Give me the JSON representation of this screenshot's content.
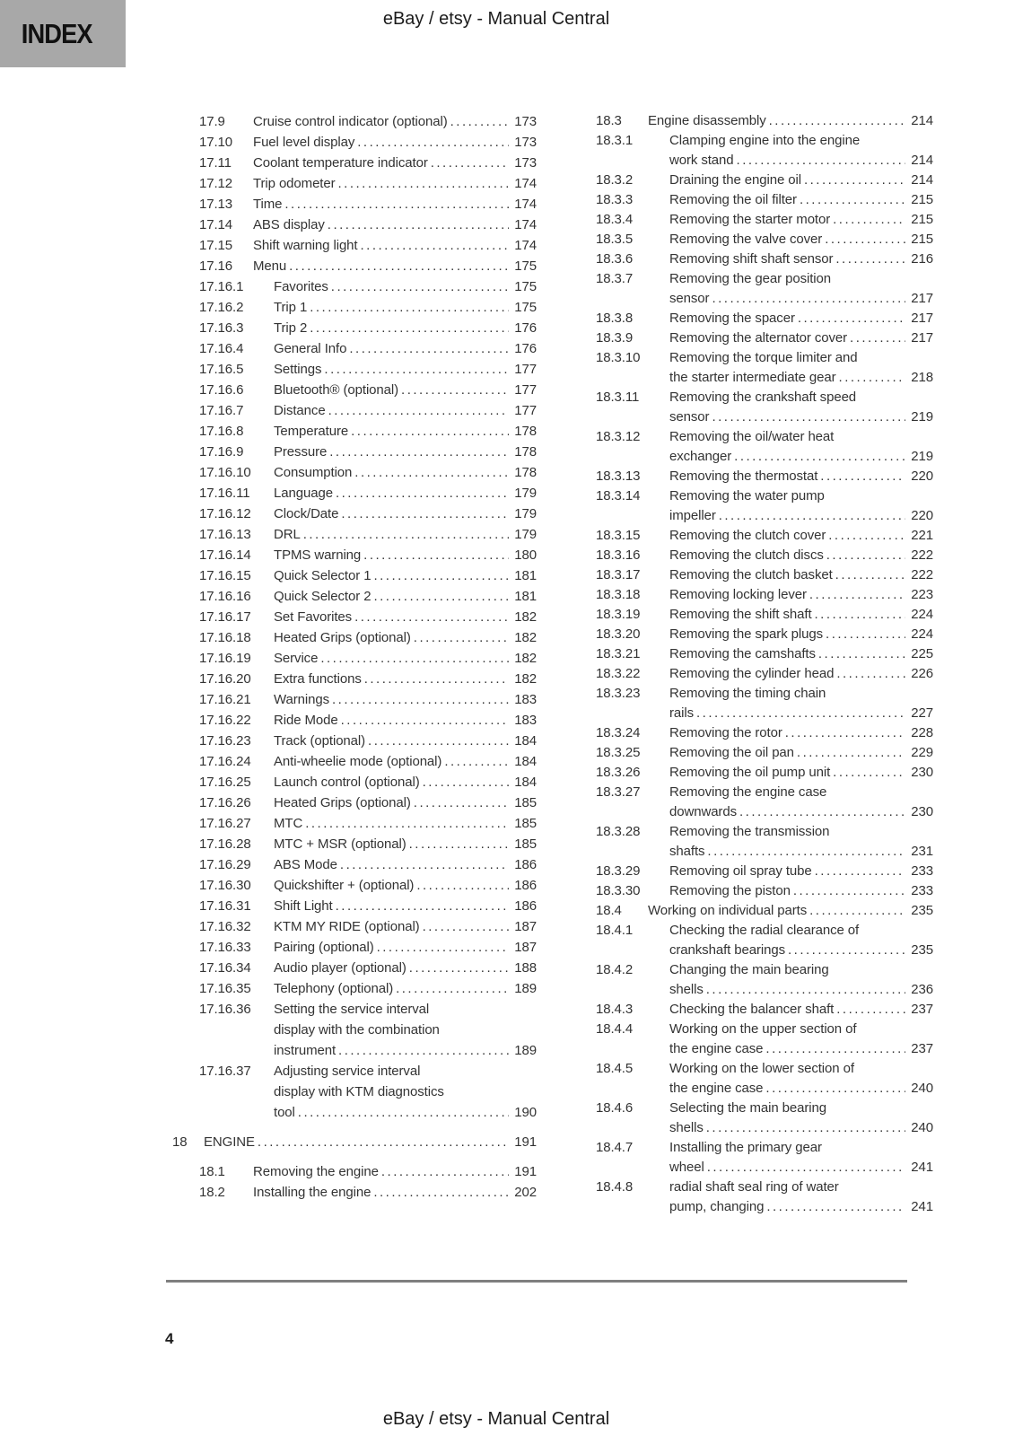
{
  "header": {
    "index_label": "INDEX",
    "title": "eBay / etsy - Manual Central"
  },
  "footer": {
    "page_number": "4",
    "title": "eBay / etsy - Manual Central"
  },
  "colors": {
    "index_tab_bg": "#a8a8a8",
    "body_text": "#333333",
    "footer_rule": "#7f7f7f"
  },
  "toc": {
    "left_column": [
      {
        "num": "17.9",
        "level": 2,
        "lines": [
          "Cruise control indicator (optional)"
        ],
        "page": "173"
      },
      {
        "num": "17.10",
        "level": 2,
        "lines": [
          "Fuel level display"
        ],
        "page": "173"
      },
      {
        "num": "17.11",
        "level": 2,
        "lines": [
          "Coolant temperature indicator"
        ],
        "page": "173"
      },
      {
        "num": "17.12",
        "level": 2,
        "lines": [
          "Trip odometer"
        ],
        "page": "174"
      },
      {
        "num": "17.13",
        "level": 2,
        "lines": [
          "Time"
        ],
        "page": "174"
      },
      {
        "num": "17.14",
        "level": 2,
        "lines": [
          "ABS display"
        ],
        "page": "174"
      },
      {
        "num": "17.15",
        "level": 2,
        "lines": [
          "Shift warning light"
        ],
        "page": "174"
      },
      {
        "num": "17.16",
        "level": 2,
        "lines": [
          "Menu"
        ],
        "page": "175"
      },
      {
        "num": "17.16.1",
        "level": 3,
        "lines": [
          "Favorites"
        ],
        "page": "175"
      },
      {
        "num": "17.16.2",
        "level": 3,
        "lines": [
          "Trip 1"
        ],
        "page": "175"
      },
      {
        "num": "17.16.3",
        "level": 3,
        "lines": [
          "Trip 2"
        ],
        "page": "176"
      },
      {
        "num": "17.16.4",
        "level": 3,
        "lines": [
          "General Info"
        ],
        "page": "176"
      },
      {
        "num": "17.16.5",
        "level": 3,
        "lines": [
          "Settings"
        ],
        "page": "177"
      },
      {
        "num": "17.16.6",
        "level": 3,
        "lines": [
          "Bluetooth® (optional)"
        ],
        "page": "177"
      },
      {
        "num": "17.16.7",
        "level": 3,
        "lines": [
          "Distance"
        ],
        "page": "177"
      },
      {
        "num": "17.16.8",
        "level": 3,
        "lines": [
          "Temperature"
        ],
        "page": "178"
      },
      {
        "num": "17.16.9",
        "level": 3,
        "lines": [
          "Pressure"
        ],
        "page": "178"
      },
      {
        "num": "17.16.10",
        "level": 3,
        "lines": [
          "Consumption"
        ],
        "page": "178"
      },
      {
        "num": "17.16.11",
        "level": 3,
        "lines": [
          "Language"
        ],
        "page": "179"
      },
      {
        "num": "17.16.12",
        "level": 3,
        "lines": [
          "Clock/Date"
        ],
        "page": "179"
      },
      {
        "num": "17.16.13",
        "level": 3,
        "lines": [
          "DRL"
        ],
        "page": "179"
      },
      {
        "num": "17.16.14",
        "level": 3,
        "lines": [
          "TPMS warning"
        ],
        "page": "180"
      },
      {
        "num": "17.16.15",
        "level": 3,
        "lines": [
          "Quick Selector 1"
        ],
        "page": "181"
      },
      {
        "num": "17.16.16",
        "level": 3,
        "lines": [
          "Quick Selector 2"
        ],
        "page": "181"
      },
      {
        "num": "17.16.17",
        "level": 3,
        "lines": [
          "Set Favorites"
        ],
        "page": "182"
      },
      {
        "num": "17.16.18",
        "level": 3,
        "lines": [
          "Heated Grips (optional)"
        ],
        "page": "182"
      },
      {
        "num": "17.16.19",
        "level": 3,
        "lines": [
          "Service"
        ],
        "page": "182"
      },
      {
        "num": "17.16.20",
        "level": 3,
        "lines": [
          "Extra functions"
        ],
        "page": "182"
      },
      {
        "num": "17.16.21",
        "level": 3,
        "lines": [
          "Warnings"
        ],
        "page": "183"
      },
      {
        "num": "17.16.22",
        "level": 3,
        "lines": [
          "Ride Mode"
        ],
        "page": "183"
      },
      {
        "num": "17.16.23",
        "level": 3,
        "lines": [
          "Track (optional)"
        ],
        "page": "184"
      },
      {
        "num": "17.16.24",
        "level": 3,
        "lines": [
          "Anti-wheelie mode (optional)"
        ],
        "page": "184"
      },
      {
        "num": "17.16.25",
        "level": 3,
        "lines": [
          "Launch control (optional)"
        ],
        "page": "184"
      },
      {
        "num": "17.16.26",
        "level": 3,
        "lines": [
          "Heated Grips (optional)"
        ],
        "page": "185"
      },
      {
        "num": "17.16.27",
        "level": 3,
        "lines": [
          "MTC"
        ],
        "page": "185"
      },
      {
        "num": "17.16.28",
        "level": 3,
        "lines": [
          "MTC + MSR (optional)"
        ],
        "page": "185"
      },
      {
        "num": "17.16.29",
        "level": 3,
        "lines": [
          "ABS Mode"
        ],
        "page": "186"
      },
      {
        "num": "17.16.30",
        "level": 3,
        "lines": [
          "Quickshifter + (optional)"
        ],
        "page": "186"
      },
      {
        "num": "17.16.31",
        "level": 3,
        "lines": [
          "Shift Light"
        ],
        "page": "186"
      },
      {
        "num": "17.16.32",
        "level": 3,
        "lines": [
          "KTM MY RIDE (optional)"
        ],
        "page": "187"
      },
      {
        "num": "17.16.33",
        "level": 3,
        "lines": [
          "Pairing (optional)"
        ],
        "page": "187"
      },
      {
        "num": "17.16.34",
        "level": 3,
        "lines": [
          "Audio player (optional)"
        ],
        "page": "188"
      },
      {
        "num": "17.16.35",
        "level": 3,
        "lines": [
          "Telephony (optional)"
        ],
        "page": "189"
      },
      {
        "num": "17.16.36",
        "level": 3,
        "lines": [
          "Setting the service interval",
          "display with the combination",
          "instrument"
        ],
        "page": "189"
      },
      {
        "num": "17.16.37",
        "level": 3,
        "lines": [
          "Adjusting service interval",
          "display with KTM diagnostics",
          "tool"
        ],
        "page": "190"
      },
      {
        "num": "18",
        "level": 1,
        "lines": [
          "ENGINE"
        ],
        "page": "191"
      },
      {
        "num": "18.1",
        "level": 2,
        "lines": [
          "Removing the engine"
        ],
        "page": "191"
      },
      {
        "num": "18.2",
        "level": 2,
        "lines": [
          "Installing the engine"
        ],
        "page": "202"
      }
    ],
    "right_column": [
      {
        "num": "18.3",
        "level": 2,
        "lines": [
          "Engine disassembly"
        ],
        "page": "214"
      },
      {
        "num": "18.3.1",
        "level": 3,
        "lines": [
          "Clamping engine into the engine",
          "work stand"
        ],
        "page": "214"
      },
      {
        "num": "18.3.2",
        "level": 3,
        "lines": [
          "Draining the engine oil"
        ],
        "page": "214"
      },
      {
        "num": "18.3.3",
        "level": 3,
        "lines": [
          "Removing the oil filter"
        ],
        "page": "215"
      },
      {
        "num": "18.3.4",
        "level": 3,
        "lines": [
          "Removing the starter motor"
        ],
        "page": "215"
      },
      {
        "num": "18.3.5",
        "level": 3,
        "lines": [
          "Removing the valve cover"
        ],
        "page": "215"
      },
      {
        "num": "18.3.6",
        "level": 3,
        "lines": [
          "Removing shift shaft sensor"
        ],
        "page": "216"
      },
      {
        "num": "18.3.7",
        "level": 3,
        "lines": [
          "Removing the gear position",
          "sensor"
        ],
        "page": "217"
      },
      {
        "num": "18.3.8",
        "level": 3,
        "lines": [
          "Removing the spacer"
        ],
        "page": "217"
      },
      {
        "num": "18.3.9",
        "level": 3,
        "lines": [
          "Removing the alternator cover"
        ],
        "page": "217"
      },
      {
        "num": "18.3.10",
        "level": 3,
        "lines": [
          "Removing the torque limiter and",
          "the starter intermediate gear"
        ],
        "page": "218"
      },
      {
        "num": "18.3.11",
        "level": 3,
        "lines": [
          "Removing the crankshaft speed",
          "sensor"
        ],
        "page": "219"
      },
      {
        "num": "18.3.12",
        "level": 3,
        "lines": [
          "Removing the oil/water heat",
          "exchanger"
        ],
        "page": "219"
      },
      {
        "num": "18.3.13",
        "level": 3,
        "lines": [
          "Removing the thermostat"
        ],
        "page": "220"
      },
      {
        "num": "18.3.14",
        "level": 3,
        "lines": [
          "Removing the water pump",
          "impeller"
        ],
        "page": "220"
      },
      {
        "num": "18.3.15",
        "level": 3,
        "lines": [
          "Removing the clutch cover"
        ],
        "page": "221"
      },
      {
        "num": "18.3.16",
        "level": 3,
        "lines": [
          "Removing the clutch discs"
        ],
        "page": "222"
      },
      {
        "num": "18.3.17",
        "level": 3,
        "lines": [
          "Removing the clutch basket"
        ],
        "page": "222"
      },
      {
        "num": "18.3.18",
        "level": 3,
        "lines": [
          "Removing locking lever"
        ],
        "page": "223"
      },
      {
        "num": "18.3.19",
        "level": 3,
        "lines": [
          "Removing the shift shaft"
        ],
        "page": "224"
      },
      {
        "num": "18.3.20",
        "level": 3,
        "lines": [
          "Removing the spark plugs"
        ],
        "page": "224"
      },
      {
        "num": "18.3.21",
        "level": 3,
        "lines": [
          "Removing the camshafts"
        ],
        "page": "225"
      },
      {
        "num": "18.3.22",
        "level": 3,
        "lines": [
          "Removing the cylinder head"
        ],
        "page": "226"
      },
      {
        "num": "18.3.23",
        "level": 3,
        "lines": [
          "Removing the timing chain",
          "rails"
        ],
        "page": "227"
      },
      {
        "num": "18.3.24",
        "level": 3,
        "lines": [
          "Removing the rotor"
        ],
        "page": "228"
      },
      {
        "num": "18.3.25",
        "level": 3,
        "lines": [
          "Removing the oil pan"
        ],
        "page": "229"
      },
      {
        "num": "18.3.26",
        "level": 3,
        "lines": [
          "Removing the oil pump unit"
        ],
        "page": "230"
      },
      {
        "num": "18.3.27",
        "level": 3,
        "lines": [
          "Removing the engine case",
          "downwards"
        ],
        "page": "230"
      },
      {
        "num": "18.3.28",
        "level": 3,
        "lines": [
          "Removing the transmission",
          "shafts"
        ],
        "page": "231"
      },
      {
        "num": "18.3.29",
        "level": 3,
        "lines": [
          "Removing oil spray tube"
        ],
        "page": "233"
      },
      {
        "num": "18.3.30",
        "level": 3,
        "lines": [
          "Removing the piston"
        ],
        "page": "233"
      },
      {
        "num": "18.4",
        "level": 2,
        "lines": [
          "Working on individual parts"
        ],
        "page": "235"
      },
      {
        "num": "18.4.1",
        "level": 3,
        "lines": [
          "Checking the radial clearance of",
          "crankshaft bearings"
        ],
        "page": "235"
      },
      {
        "num": "18.4.2",
        "level": 3,
        "lines": [
          "Changing the main bearing",
          "shells"
        ],
        "page": "236"
      },
      {
        "num": "18.4.3",
        "level": 3,
        "lines": [
          "Checking the balancer shaft"
        ],
        "page": "237"
      },
      {
        "num": "18.4.4",
        "level": 3,
        "lines": [
          "Working on the upper section of",
          "the engine case"
        ],
        "page": "237"
      },
      {
        "num": "18.4.5",
        "level": 3,
        "lines": [
          "Working on the lower section of",
          "the engine case"
        ],
        "page": "240"
      },
      {
        "num": "18.4.6",
        "level": 3,
        "lines": [
          "Selecting the main bearing",
          "shells"
        ],
        "page": "240"
      },
      {
        "num": "18.4.7",
        "level": 3,
        "lines": [
          "Installing the primary gear",
          "wheel"
        ],
        "page": "241"
      },
      {
        "num": "18.4.8",
        "level": 3,
        "lines": [
          "radial shaft seal ring of water",
          "pump, changing"
        ],
        "page": "241"
      }
    ]
  }
}
